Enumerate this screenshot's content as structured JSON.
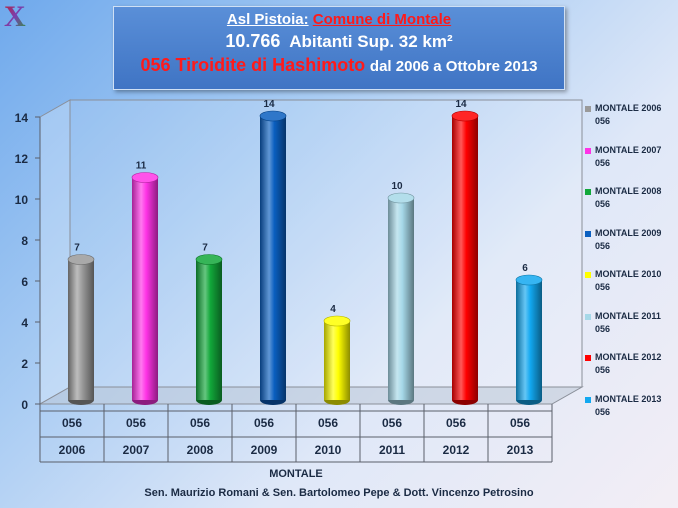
{
  "header": {
    "title_prefix": "Asl Pistoia:",
    "title_highlight": "Comune di Montale",
    "population_value": "10.766",
    "population_text": "Abitanti Sup. 32 km²",
    "disease": "056 Tiroidite di Hashimoto",
    "period": "dal 2006 a Ottobre 2013"
  },
  "chart_data": {
    "type": "bar",
    "categories": [
      "2006",
      "2007",
      "2008",
      "2009",
      "2010",
      "2011",
      "2012",
      "2013"
    ],
    "subcategory": "056",
    "xlabel": "MONTALE",
    "ylim": [
      0,
      14
    ],
    "yticks": [
      0,
      2,
      4,
      6,
      8,
      10,
      12,
      14
    ],
    "grid": false,
    "legend_position": "right",
    "series": [
      {
        "name": "MONTALE 2006 056",
        "category": "2006",
        "value": 7,
        "color": "#9a9a9a"
      },
      {
        "name": "MONTALE 2007 056",
        "category": "2007",
        "value": 11,
        "color": "#ff33e6"
      },
      {
        "name": "MONTALE 2008 056",
        "category": "2008",
        "value": 7,
        "color": "#12a83a"
      },
      {
        "name": "MONTALE 2009 056",
        "category": "2009",
        "value": 14,
        "color": "#0a5fc0"
      },
      {
        "name": "MONTALE 2010 056",
        "category": "2010",
        "value": 4,
        "color": "#ffff00"
      },
      {
        "name": "MONTALE 2011 056",
        "category": "2011",
        "value": 10,
        "color": "#a6d8e8"
      },
      {
        "name": "MONTALE 2012 056",
        "category": "2012",
        "value": 14,
        "color": "#ff0000"
      },
      {
        "name": "MONTALE 2013 056",
        "category": "2013",
        "value": 6,
        "color": "#12a8f0"
      }
    ]
  },
  "legend": [
    {
      "line1": "MONTALE 2006",
      "line2": "056",
      "color": "#9a9a9a"
    },
    {
      "line1": "MONTALE 2007",
      "line2": "056",
      "color": "#ff33e6"
    },
    {
      "line1": "MONTALE 2008",
      "line2": "056",
      "color": "#12a83a"
    },
    {
      "line1": "MONTALE 2009",
      "line2": "056",
      "color": "#0a5fc0"
    },
    {
      "line1": "MONTALE 2010",
      "line2": "056",
      "color": "#ffff00"
    },
    {
      "line1": "MONTALE 2011",
      "line2": "056",
      "color": "#a6d8e8"
    },
    {
      "line1": "MONTALE 2012",
      "line2": "056",
      "color": "#ff0000"
    },
    {
      "line1": "MONTALE 2013",
      "line2": "056",
      "color": "#12a8f0"
    }
  ],
  "footer": "Sen. Maurizio Romani & Sen. Bartolomeo Pepe & Dott. Vincenzo Petrosino",
  "logo": {
    "letter": "X",
    "icon": "x-logo-icon"
  }
}
